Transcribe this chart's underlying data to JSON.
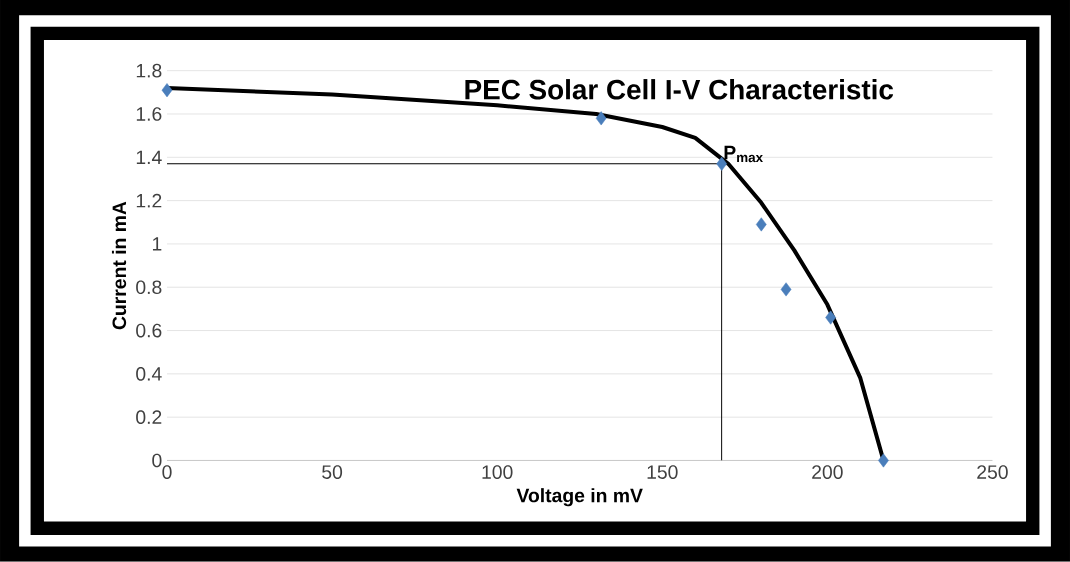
{
  "chart_data": {
    "type": "scatter",
    "title": "PEC Solar Cell I-V Characteristic",
    "xlabel": "Voltage in mV",
    "ylabel": "Current in mA",
    "xlim": [
      0,
      250
    ],
    "xticks": [
      0,
      50,
      100,
      150,
      200,
      250
    ],
    "ylim": [
      0,
      1.8
    ],
    "yticks": [
      0,
      0.2,
      0.4,
      0.6,
      0.8,
      1,
      1.2,
      1.4,
      1.6,
      1.8
    ],
    "grid": "y",
    "series": [
      {
        "marker": "diamond",
        "color": "#4a7ebb",
        "x": [
          0,
          131.5,
          168,
          180,
          187.5,
          201,
          217
        ],
        "values": [
          1.71,
          1.58,
          1.37,
          1.09,
          0.79,
          0.66,
          0
        ]
      },
      {
        "type": "line",
        "marker": "none",
        "line_style": "solid",
        "color": "#000000",
        "x": [
          0,
          50,
          100,
          130,
          150,
          160,
          170,
          180,
          190,
          200,
          210,
          217
        ],
        "values": [
          1.72,
          1.69,
          1.64,
          1.6,
          1.54,
          1.49,
          1.37,
          1.19,
          0.97,
          0.72,
          0.38,
          0
        ]
      },
      {
        "type": "line",
        "marker": "none",
        "line_style": "solid",
        "color": "#000000",
        "x": [
          0,
          168,
          168
        ],
        "values": [
          1.37,
          1.37,
          0
        ]
      }
    ],
    "annotations": [
      {
        "text": "P$_{max}$",
        "x": 168,
        "y": 1.37
      }
    ]
  }
}
